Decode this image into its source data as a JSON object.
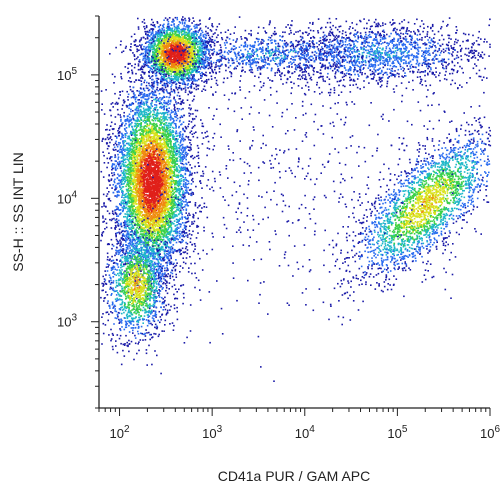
{
  "chart_data": {
    "type": "scatter",
    "title": "",
    "xlabel": "CD41a PUR / GAM APC",
    "ylabel": "SS-H :: SS INT LIN",
    "x_scale": "log",
    "y_scale": "log",
    "xlim": [
      60,
      1000000
    ],
    "ylim": [
      200,
      300000
    ],
    "x_ticks": [
      {
        "value": 100,
        "base": "10",
        "exp": "2"
      },
      {
        "value": 1000,
        "base": "10",
        "exp": "3"
      },
      {
        "value": 10000,
        "base": "10",
        "exp": "4"
      },
      {
        "value": 100000,
        "base": "10",
        "exp": "5"
      },
      {
        "value": 1000000,
        "base": "10",
        "exp": "6"
      }
    ],
    "y_ticks": [
      {
        "value": 1000,
        "base": "10",
        "exp": "3"
      },
      {
        "value": 10000,
        "base": "10",
        "exp": "4"
      },
      {
        "value": 100000,
        "base": "10",
        "exp": "5"
      }
    ],
    "grid": false,
    "legend": "none",
    "colormap": [
      "#1a1aa8",
      "#2a6cf0",
      "#1fb8c9",
      "#3ad04a",
      "#d8e21c",
      "#f08a10",
      "#e0201a"
    ],
    "populations": [
      {
        "x_center": 400,
        "y_center": 150000,
        "x_spread_dec": 0.18,
        "y_spread_dec": 0.13,
        "density": "high",
        "count": 2600
      },
      {
        "x_center": 220,
        "y_center": 14000,
        "x_spread_dec": 0.2,
        "y_spread_dec": 0.38,
        "density": "high",
        "count": 6500
      },
      {
        "x_center": 150,
        "y_center": 2000,
        "x_spread_dec": 0.16,
        "y_spread_dec": 0.22,
        "density": "medium",
        "count": 1400
      },
      {
        "x_center": 200000,
        "y_center": 9000,
        "x_spread_dec": 0.38,
        "y_spread_dec": 0.2,
        "density": "medium",
        "count": 2600,
        "tilt": 0.55
      },
      {
        "x_center": 60000,
        "y_center": 150000,
        "x_spread_dec": 0.55,
        "y_spread_dec": 0.13,
        "density": "low",
        "count": 1600
      },
      {
        "x_center": 4000,
        "y_center": 150000,
        "x_spread_dec": 0.5,
        "y_spread_dec": 0.1,
        "density": "low",
        "count": 800
      },
      {
        "x_center": 3000,
        "y_center": 20000,
        "x_spread_dec": 1.2,
        "y_spread_dec": 0.6,
        "density": "sparse",
        "count": 700
      }
    ]
  }
}
